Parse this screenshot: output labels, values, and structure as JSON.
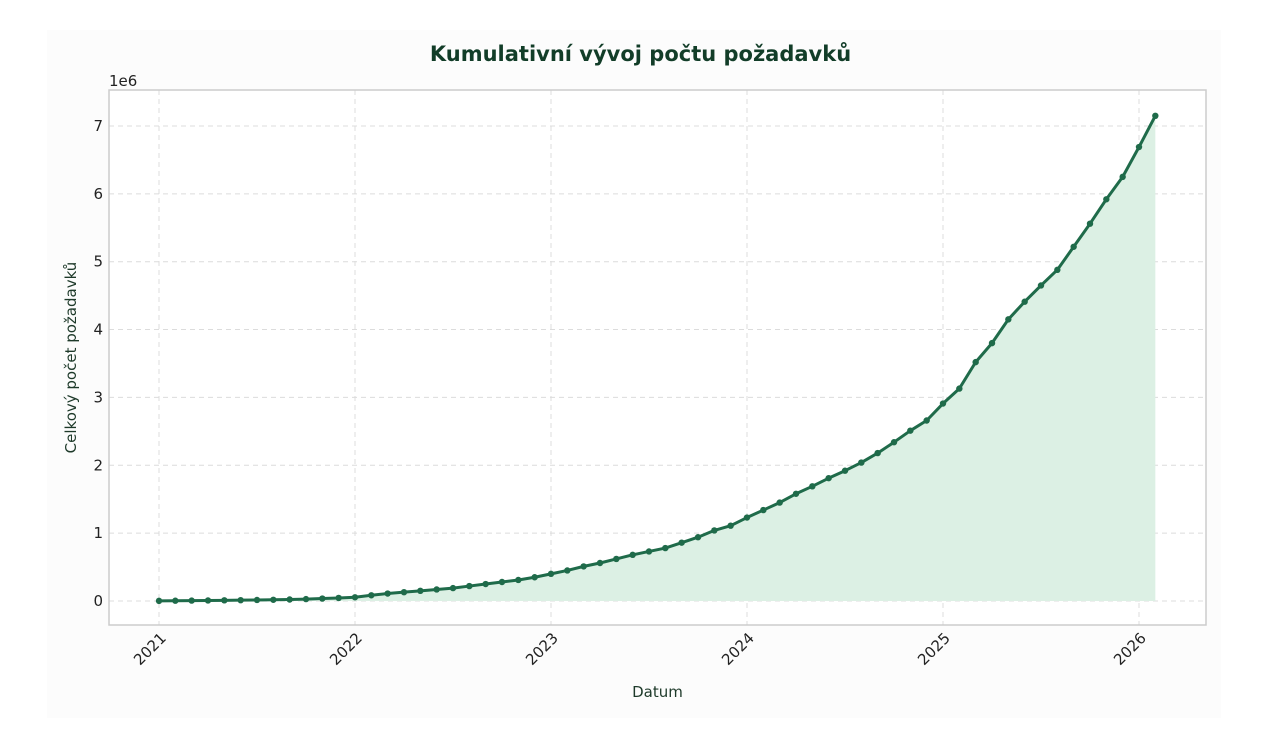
{
  "chart_data": {
    "type": "area",
    "title": "Kumulativní vývoj počtu požadavků",
    "xlabel": "Datum",
    "ylabel": "Celkový počet požadavků",
    "y_offset_label": "1e6",
    "y_scale": 1000000,
    "ylim": [
      -0.36,
      7.55
    ],
    "yticks": [
      0,
      1,
      2,
      3,
      4,
      5,
      6,
      7
    ],
    "xticks": [
      "2021",
      "2022",
      "2023",
      "2024",
      "2025",
      "2026"
    ],
    "xlim_months": [
      -2.6,
      64.6
    ],
    "grid": true,
    "legend": null,
    "colors": {
      "line": "#1f6b4a",
      "fill": "#dcf0e4",
      "title": "#123d28",
      "grid": "#dcdcdc",
      "frame": "#cccccc"
    },
    "series": [
      {
        "name": "Celkový počet požadavků",
        "x_start": "2021-01",
        "x_step": "1 month",
        "values": [
          0.002,
          0.004,
          0.006,
          0.008,
          0.01,
          0.012,
          0.015,
          0.018,
          0.022,
          0.028,
          0.036,
          0.045,
          0.055,
          0.084,
          0.11,
          0.13,
          0.15,
          0.17,
          0.19,
          0.22,
          0.25,
          0.28,
          0.31,
          0.35,
          0.4,
          0.45,
          0.51,
          0.56,
          0.62,
          0.68,
          0.73,
          0.78,
          0.86,
          0.94,
          1.04,
          1.11,
          1.23,
          1.34,
          1.45,
          1.58,
          1.69,
          1.81,
          1.92,
          2.04,
          2.18,
          2.34,
          2.51,
          2.66,
          2.91,
          3.13,
          3.52,
          3.8,
          4.15,
          4.41,
          4.65,
          4.88,
          5.22,
          5.56,
          5.92,
          6.25,
          6.69,
          7.15
        ]
      }
    ]
  }
}
